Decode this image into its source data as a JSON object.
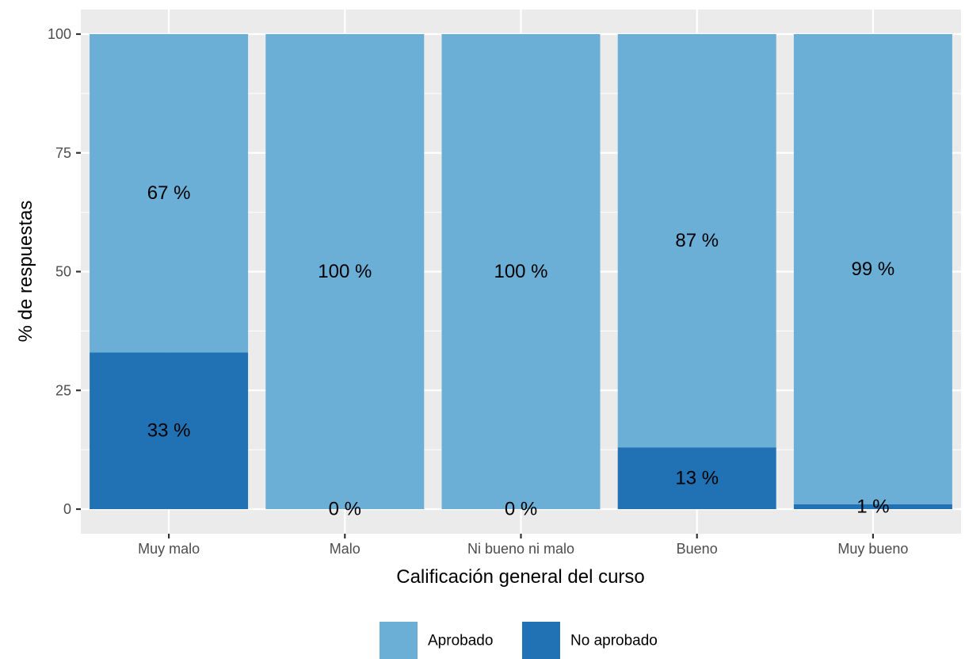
{
  "chart_data": {
    "type": "bar",
    "stacked": true,
    "categories": [
      "Muy malo",
      "Malo",
      "Ni bueno ni malo",
      "Bueno",
      "Muy bueno"
    ],
    "series": [
      {
        "name": "Aprobado",
        "values": [
          67,
          100,
          100,
          87,
          99
        ],
        "color": "#6baed6",
        "labels": [
          "67 %",
          "100 %",
          "100 %",
          "87 %",
          "99 %"
        ]
      },
      {
        "name": "No aprobado",
        "values": [
          33,
          0,
          0,
          13,
          1
        ],
        "color": "#2171b5",
        "labels": [
          "33 %",
          "0 %",
          "0 %",
          "13 %",
          "1 %"
        ]
      }
    ],
    "xlabel": "Calificación general del curso",
    "ylabel": "% de respuestas",
    "ylim": [
      0,
      100
    ],
    "yticks": [
      0,
      25,
      50,
      75,
      100
    ],
    "ytick_labels": [
      "0",
      "25",
      "50",
      "75",
      "100"
    ],
    "grid": true,
    "panel_background": "#ebebeb",
    "legend_position": "bottom"
  }
}
